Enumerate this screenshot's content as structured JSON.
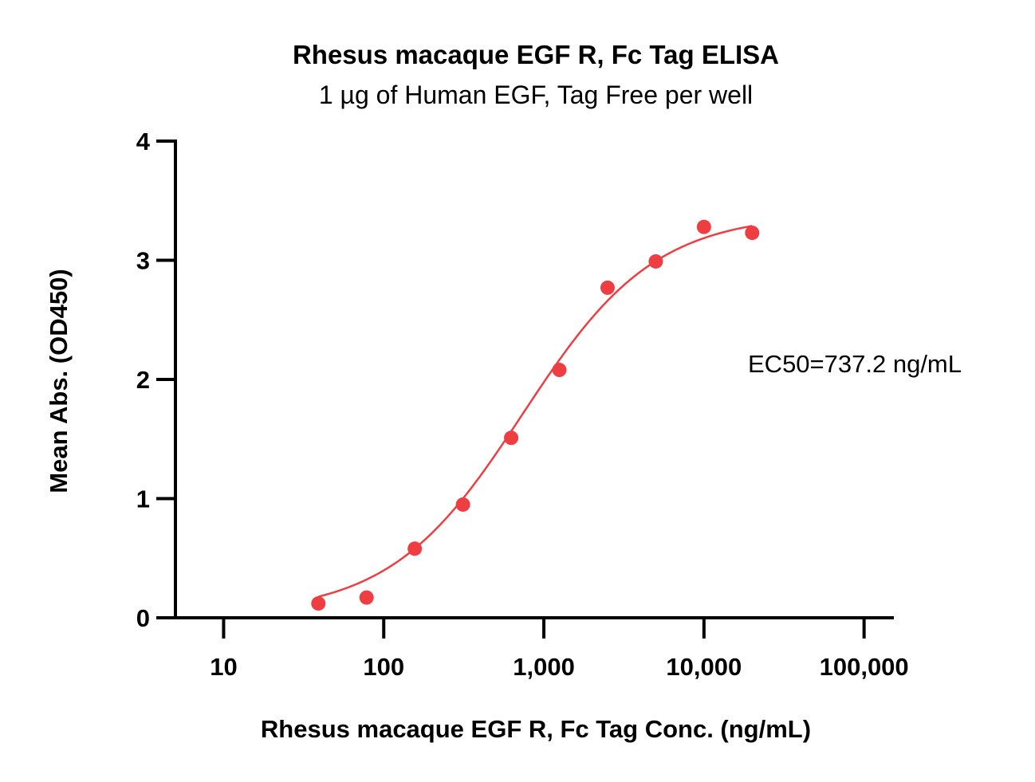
{
  "chart_data": {
    "type": "scatter",
    "title": "Rhesus macaque EGF R, Fc Tag ELISA",
    "subtitle": "1 µg of Human EGF, Tag Free per well",
    "xlabel": "Rhesus macaque EGF R, Fc Tag Conc. (ng/mL)",
    "ylabel": "Mean Abs. (OD450)",
    "x_scale": "log",
    "xlim": [
      5,
      150000
    ],
    "ylim": [
      0,
      4
    ],
    "x_ticks": [
      10,
      100,
      1000,
      10000,
      100000
    ],
    "x_tick_labels": [
      "10",
      "100",
      "1,000",
      "10,000",
      "100,000"
    ],
    "y_ticks": [
      0,
      1,
      2,
      3,
      4
    ],
    "y_tick_labels": [
      "0",
      "1",
      "2",
      "3",
      "4"
    ],
    "grid": false,
    "color": "#ef3e42",
    "series": [
      {
        "x": [
          39.06,
          78.13,
          156.25,
          312.5,
          625,
          1250,
          2500,
          5000,
          10000,
          20000
        ],
        "y": [
          0.12,
          0.17,
          0.58,
          0.95,
          1.51,
          2.08,
          2.77,
          2.99,
          3.28,
          3.23
        ],
        "fit": {
          "model": "4PL",
          "bottom": 0.03,
          "top": 3.39,
          "ec50": 737.2,
          "hill": 1.05,
          "x_range": [
            39.06,
            20000
          ]
        }
      }
    ],
    "annotations": [
      {
        "text": "EC50=737.2 ng/mL"
      }
    ]
  }
}
